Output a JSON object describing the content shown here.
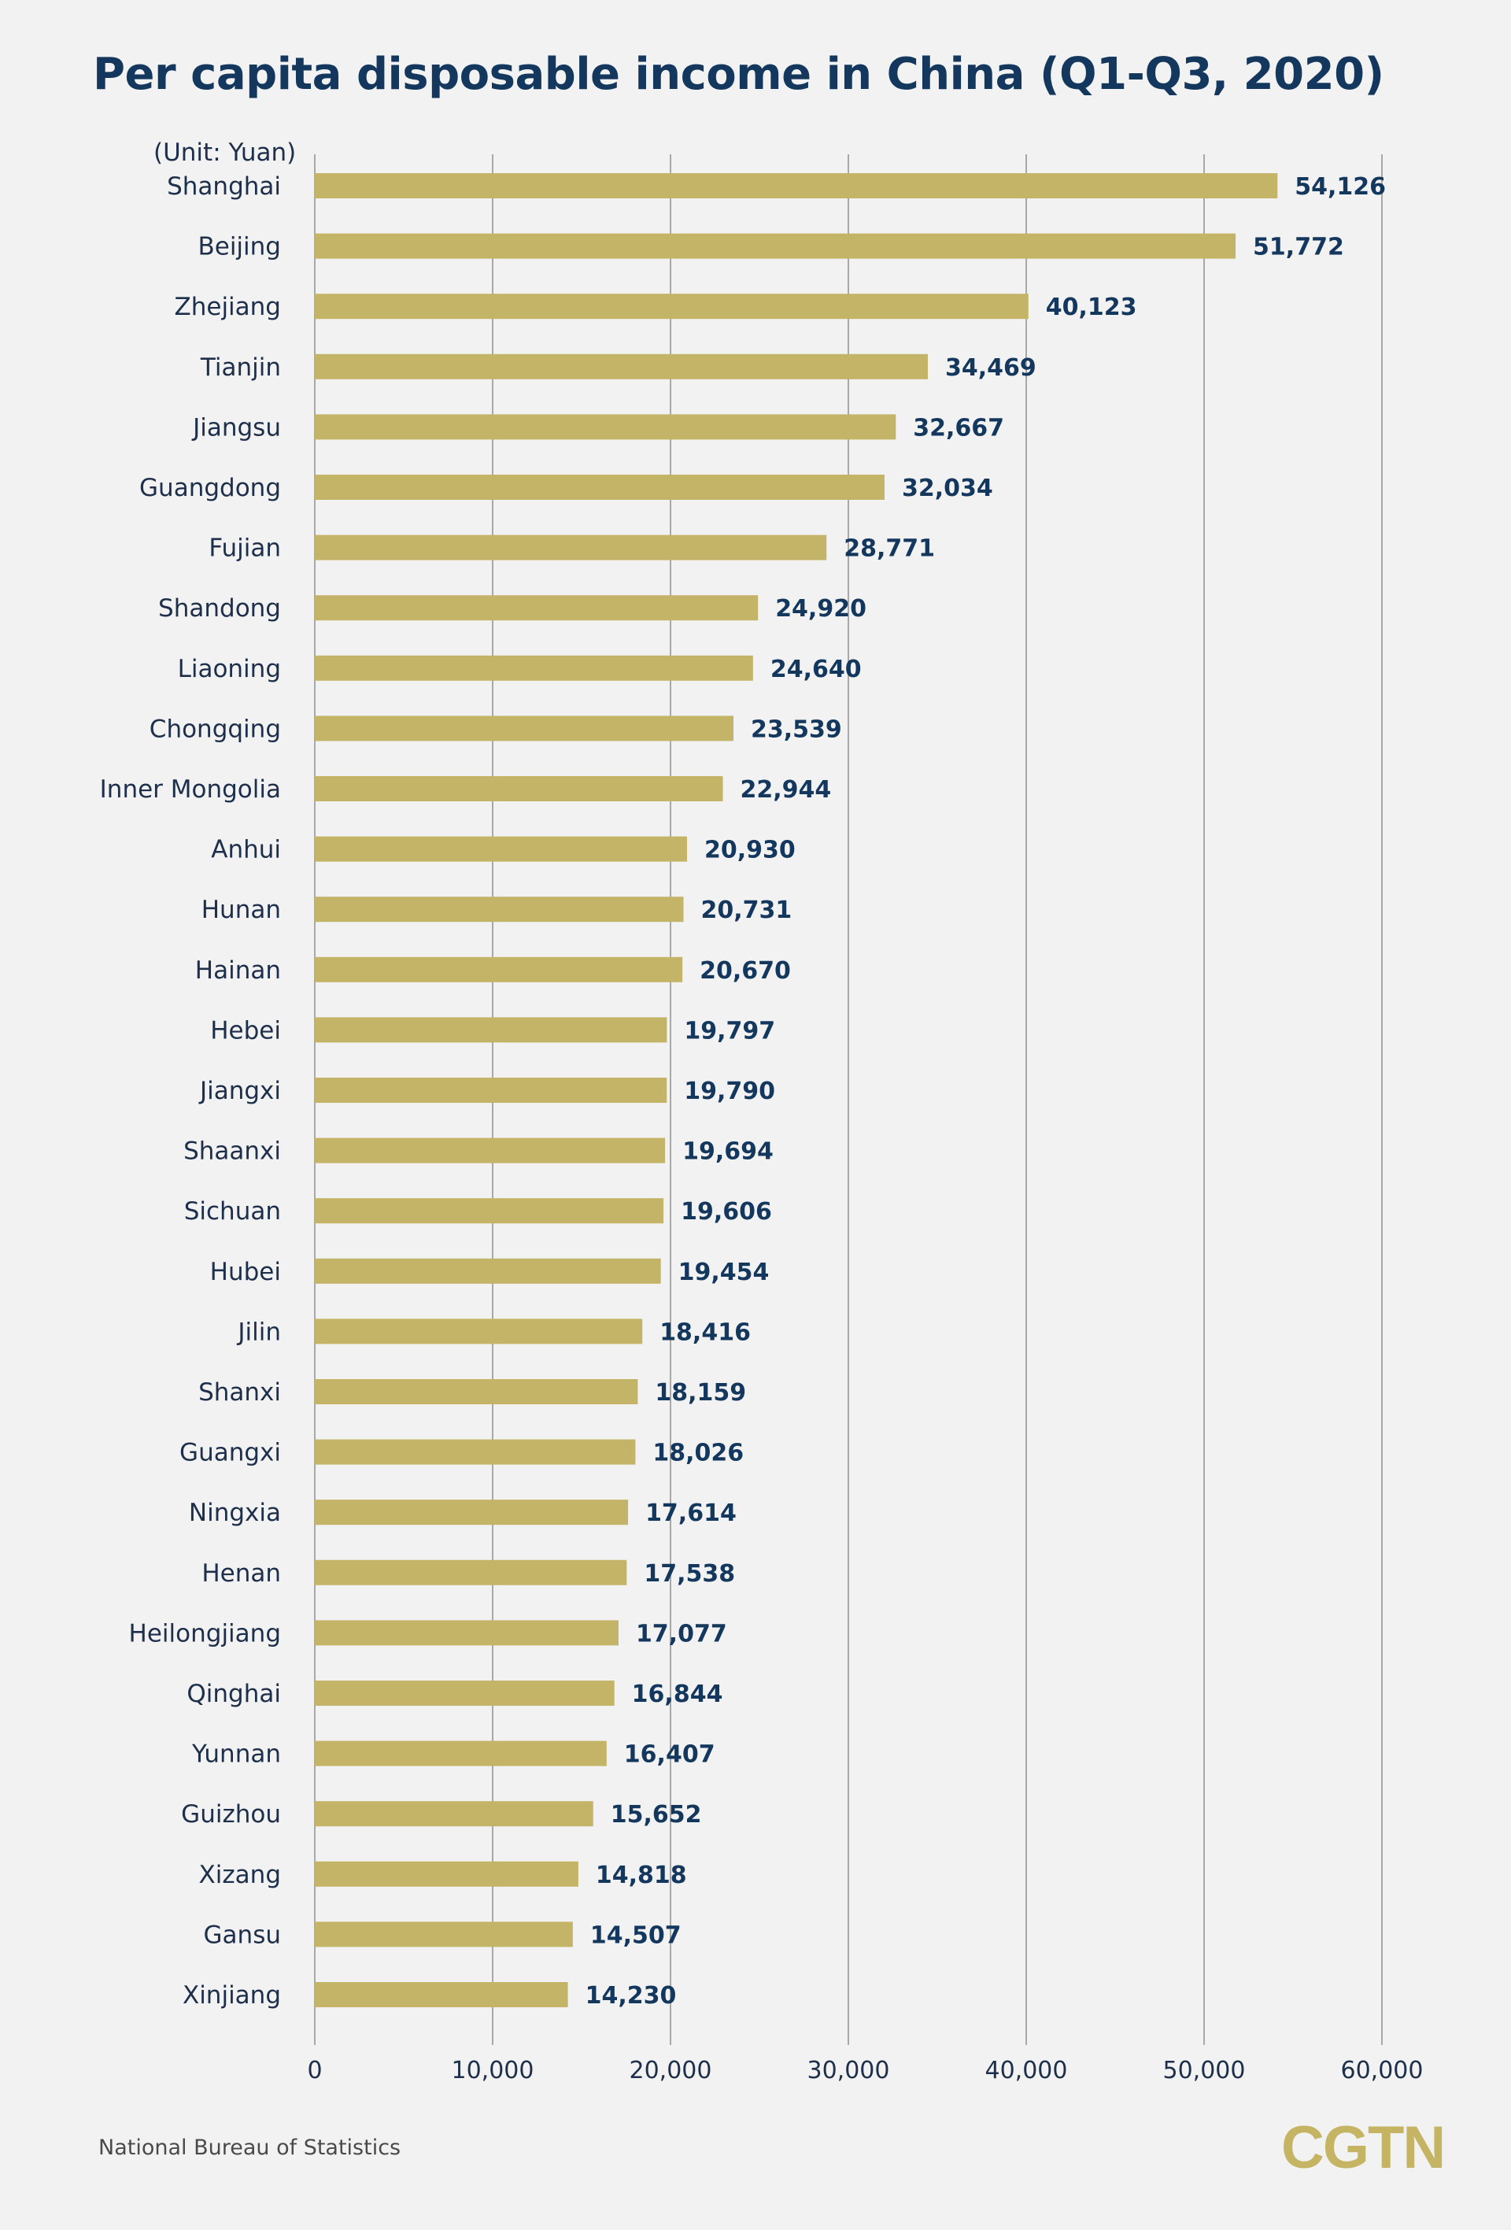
{
  "header": {
    "title": "Per capita disposable income in China (Q1-Q3, 2020)",
    "unit_label": "(Unit: Yuan)"
  },
  "footer": {
    "source": "National Bureau of Statistics",
    "logo_text": "CGTN"
  },
  "colors": {
    "bar": "#c4b467",
    "value_label": "#14375e",
    "category_label": "#1d2f4a",
    "gridline": "#a8a8a8",
    "title": "#14375e",
    "logo": "#c4b463",
    "background": "#f2f2f2"
  },
  "chart_data": {
    "type": "bar",
    "orientation": "horizontal",
    "title": "Per capita disposable income in China (Q1-Q3, 2020)",
    "unit": "(Unit: Yuan)",
    "xlim": [
      0,
      60000
    ],
    "x_ticks": [
      0,
      10000,
      20000,
      30000,
      40000,
      50000,
      60000
    ],
    "x_tick_labels": [
      "0",
      "10,000",
      "20,000",
      "30,000",
      "40,000",
      "50,000",
      "60,000"
    ],
    "grid": true,
    "categories": [
      "Shanghai",
      "Beijing",
      "Zhejiang",
      "Tianjin",
      "Jiangsu",
      "Guangdong",
      "Fujian",
      "Shandong",
      "Liaoning",
      "Chongqing",
      "Inner Mongolia",
      "Anhui",
      "Hunan",
      "Hainan",
      "Hebei",
      "Jiangxi",
      "Shaanxi",
      "Sichuan",
      "Hubei",
      "Jilin",
      "Shanxi",
      "Guangxi",
      "Ningxia",
      "Henan",
      "Heilongjiang",
      "Qinghai",
      "Yunnan",
      "Guizhou",
      "Xizang",
      "Gansu",
      "Xinjiang"
    ],
    "values": [
      54126,
      51772,
      40123,
      34469,
      32667,
      32034,
      28771,
      24920,
      24640,
      23539,
      22944,
      20930,
      20731,
      20670,
      19797,
      19790,
      19694,
      19606,
      19454,
      18416,
      18159,
      18026,
      17614,
      17538,
      17077,
      16844,
      16407,
      15652,
      14818,
      14507,
      14230
    ],
    "value_labels": [
      "54,126",
      "51,772",
      "40,123",
      "34,469",
      "32,667",
      "32,034",
      "28,771",
      "24,920",
      "24,640",
      "23,539",
      "22,944",
      "20,930",
      "20,731",
      "20,670",
      "19,797",
      "19,790",
      "19,694",
      "19,606",
      "19,454",
      "18,416",
      "18,159",
      "18,026",
      "17,614",
      "17,538",
      "17,077",
      "16,844",
      "16,407",
      "15,652",
      "14,818",
      "14,507",
      "14,230"
    ]
  }
}
